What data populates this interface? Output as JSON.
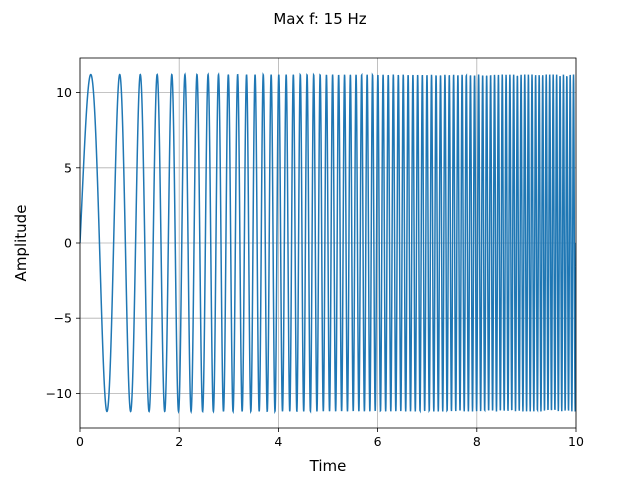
{
  "chart_data": {
    "type": "line",
    "title": "Max f: 15 Hz",
    "xlabel": "Time",
    "ylabel": "Amplitude",
    "xlim": [
      0,
      10
    ],
    "ylim": [
      -12.3,
      12.3
    ],
    "xticks": [
      0,
      2,
      4,
      6,
      8,
      10
    ],
    "xtick_labels": [
      "0",
      "2",
      "4",
      "6",
      "8",
      "10"
    ],
    "yticks": [
      -10,
      -5,
      0,
      5,
      10
    ],
    "ytick_labels": [
      "−10",
      "−5",
      "0",
      "5",
      "10"
    ],
    "grid": true,
    "series": [
      {
        "color": "#1f77b4",
        "function": "linear chirp",
        "amplitude": 11.2,
        "start_frequency_hz": 1,
        "max_frequency_hz": 15,
        "t_start": 0,
        "t_end": 10,
        "samples": 3000
      }
    ]
  }
}
